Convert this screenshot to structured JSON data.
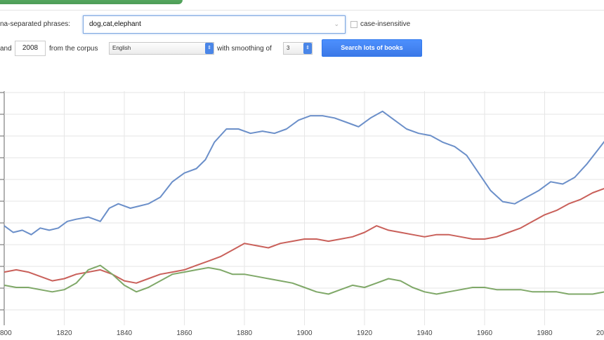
{
  "form": {
    "phrases_label": "na-separated phrases:",
    "phrases_value": "dog,cat,elephant",
    "case_insensitive_label": "case-insensitive",
    "and_label": "and",
    "end_year": "2008",
    "corpus_label": "from the corpus",
    "corpus_value": "English",
    "smoothing_label": "with smoothing of",
    "smoothing_value": "3",
    "search_button": "Search lots of books"
  },
  "colors": {
    "dog": "#6b8fc9",
    "cat": "#c9605a",
    "elephant": "#7fa868",
    "grid": "#e6e6e6",
    "button": "#4d90fe"
  },
  "chart_data": {
    "type": "line",
    "x_ticks": [
      "800",
      "1820",
      "1840",
      "1860",
      "1880",
      "1900",
      "1920",
      "1940",
      "1960",
      "1980",
      "20"
    ],
    "xlim": [
      1800,
      2008
    ],
    "ylim": [
      0,
      100
    ],
    "grid": true,
    "series": [
      {
        "name": "dog",
        "color": "#6b8fc9",
        "points": [
          [
            1800,
            42
          ],
          [
            1803,
            39
          ],
          [
            1806,
            40
          ],
          [
            1809,
            38
          ],
          [
            1812,
            41
          ],
          [
            1815,
            40
          ],
          [
            1818,
            41
          ],
          [
            1821,
            44
          ],
          [
            1824,
            45
          ],
          [
            1828,
            46
          ],
          [
            1832,
            44
          ],
          [
            1835,
            50
          ],
          [
            1838,
            52
          ],
          [
            1842,
            50
          ],
          [
            1845,
            51
          ],
          [
            1848,
            52
          ],
          [
            1852,
            55
          ],
          [
            1856,
            62
          ],
          [
            1860,
            66
          ],
          [
            1864,
            68
          ],
          [
            1867,
            72
          ],
          [
            1870,
            80
          ],
          [
            1874,
            86
          ],
          [
            1878,
            86
          ],
          [
            1882,
            84
          ],
          [
            1886,
            85
          ],
          [
            1890,
            84
          ],
          [
            1894,
            86
          ],
          [
            1898,
            90
          ],
          [
            1902,
            92
          ],
          [
            1906,
            92
          ],
          [
            1910,
            91
          ],
          [
            1914,
            89
          ],
          [
            1918,
            87
          ],
          [
            1922,
            91
          ],
          [
            1926,
            94
          ],
          [
            1930,
            90
          ],
          [
            1934,
            86
          ],
          [
            1938,
            84
          ],
          [
            1942,
            83
          ],
          [
            1946,
            80
          ],
          [
            1950,
            78
          ],
          [
            1954,
            74
          ],
          [
            1958,
            66
          ],
          [
            1962,
            58
          ],
          [
            1966,
            53
          ],
          [
            1970,
            52
          ],
          [
            1974,
            55
          ],
          [
            1978,
            58
          ],
          [
            1982,
            62
          ],
          [
            1986,
            61
          ],
          [
            1990,
            64
          ],
          [
            1994,
            70
          ],
          [
            1998,
            77
          ],
          [
            2002,
            84
          ],
          [
            2006,
            88
          ],
          [
            2008,
            87
          ]
        ]
      },
      {
        "name": "cat",
        "color": "#c9605a",
        "points": [
          [
            1800,
            21
          ],
          [
            1804,
            22
          ],
          [
            1808,
            21
          ],
          [
            1812,
            19
          ],
          [
            1816,
            17
          ],
          [
            1820,
            18
          ],
          [
            1824,
            20
          ],
          [
            1828,
            21
          ],
          [
            1832,
            22
          ],
          [
            1836,
            20
          ],
          [
            1840,
            17
          ],
          [
            1844,
            16
          ],
          [
            1848,
            18
          ],
          [
            1852,
            20
          ],
          [
            1856,
            21
          ],
          [
            1860,
            22
          ],
          [
            1864,
            24
          ],
          [
            1868,
            26
          ],
          [
            1872,
            28
          ],
          [
            1876,
            31
          ],
          [
            1880,
            34
          ],
          [
            1884,
            33
          ],
          [
            1888,
            32
          ],
          [
            1892,
            34
          ],
          [
            1896,
            35
          ],
          [
            1900,
            36
          ],
          [
            1904,
            36
          ],
          [
            1908,
            35
          ],
          [
            1912,
            36
          ],
          [
            1916,
            37
          ],
          [
            1920,
            39
          ],
          [
            1924,
            42
          ],
          [
            1928,
            40
          ],
          [
            1932,
            39
          ],
          [
            1936,
            38
          ],
          [
            1940,
            37
          ],
          [
            1944,
            38
          ],
          [
            1948,
            38
          ],
          [
            1952,
            37
          ],
          [
            1956,
            36
          ],
          [
            1960,
            36
          ],
          [
            1964,
            37
          ],
          [
            1968,
            39
          ],
          [
            1972,
            41
          ],
          [
            1976,
            44
          ],
          [
            1980,
            47
          ],
          [
            1984,
            49
          ],
          [
            1988,
            52
          ],
          [
            1992,
            54
          ],
          [
            1996,
            57
          ],
          [
            2000,
            59
          ],
          [
            2004,
            58
          ],
          [
            2008,
            57
          ]
        ]
      },
      {
        "name": "elephant",
        "color": "#7fa868",
        "points": [
          [
            1800,
            15
          ],
          [
            1804,
            14
          ],
          [
            1808,
            14
          ],
          [
            1812,
            13
          ],
          [
            1816,
            12
          ],
          [
            1820,
            13
          ],
          [
            1824,
            16
          ],
          [
            1828,
            22
          ],
          [
            1832,
            24
          ],
          [
            1836,
            20
          ],
          [
            1840,
            15
          ],
          [
            1844,
            12
          ],
          [
            1848,
            14
          ],
          [
            1852,
            17
          ],
          [
            1856,
            20
          ],
          [
            1860,
            21
          ],
          [
            1864,
            22
          ],
          [
            1868,
            23
          ],
          [
            1872,
            22
          ],
          [
            1876,
            20
          ],
          [
            1880,
            20
          ],
          [
            1884,
            19
          ],
          [
            1888,
            18
          ],
          [
            1892,
            17
          ],
          [
            1896,
            16
          ],
          [
            1900,
            14
          ],
          [
            1904,
            12
          ],
          [
            1908,
            11
          ],
          [
            1912,
            13
          ],
          [
            1916,
            15
          ],
          [
            1920,
            14
          ],
          [
            1924,
            16
          ],
          [
            1928,
            18
          ],
          [
            1932,
            17
          ],
          [
            1936,
            14
          ],
          [
            1940,
            12
          ],
          [
            1944,
            11
          ],
          [
            1948,
            12
          ],
          [
            1952,
            13
          ],
          [
            1956,
            14
          ],
          [
            1960,
            14
          ],
          [
            1964,
            13
          ],
          [
            1968,
            13
          ],
          [
            1972,
            13
          ],
          [
            1976,
            12
          ],
          [
            1980,
            12
          ],
          [
            1984,
            12
          ],
          [
            1988,
            11
          ],
          [
            1992,
            11
          ],
          [
            1996,
            11
          ],
          [
            2000,
            12
          ],
          [
            2004,
            12
          ],
          [
            2008,
            12
          ]
        ]
      }
    ]
  }
}
